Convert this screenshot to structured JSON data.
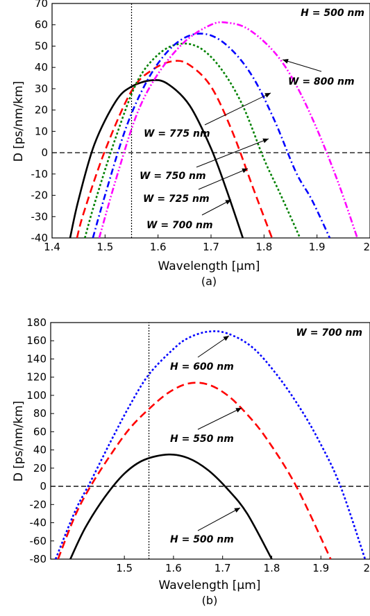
{
  "chart_data": [
    {
      "type": "line",
      "panel_label": "(a)",
      "xlabel": "Wavelength [µm]",
      "ylabel": "D [ps/nm/km]",
      "xlim": [
        1.4,
        2.0
      ],
      "ylim": [
        -40,
        70
      ],
      "xticks": [
        "1.4",
        "1.5",
        "1.6",
        "1.7",
        "1.8",
        "1.9",
        "2"
      ],
      "yticks": [
        "-40",
        "-30",
        "-20",
        "-10",
        "0",
        "10",
        "20",
        "30",
        "40",
        "50",
        "60",
        "70"
      ],
      "corner_label": "H = 500 nm",
      "reference_lines": {
        "x": 1.55,
        "y": 0
      },
      "series": [
        {
          "name": "W = 700 nm",
          "color": "#000000",
          "style": "solid",
          "x": [
            1.434,
            1.45,
            1.48,
            1.52,
            1.55,
            1.59,
            1.62,
            1.66,
            1.7,
            1.73,
            1.76
          ],
          "y": [
            -40,
            -22,
            4,
            24,
            31,
            34,
            32,
            22,
            2,
            -18,
            -40
          ]
        },
        {
          "name": "W = 725 nm",
          "color": "#ff0000",
          "style": "longdash",
          "x": [
            1.447,
            1.46,
            1.5,
            1.55,
            1.59,
            1.63,
            1.66,
            1.7,
            1.74,
            1.78,
            1.815
          ],
          "y": [
            -40,
            -28,
            1,
            29,
            39,
            43,
            41,
            31,
            10,
            -17,
            -40
          ]
        },
        {
          "name": "W = 750 nm",
          "color": "#008000",
          "style": "dotted",
          "x": [
            1.462,
            1.48,
            1.52,
            1.56,
            1.6,
            1.64,
            1.68,
            1.72,
            1.76,
            1.8,
            1.83,
            1.868
          ],
          "y": [
            -40,
            -24,
            7,
            33,
            46,
            51,
            49,
            39,
            22,
            -3,
            -19,
            -40
          ]
        },
        {
          "name": "W = 775 nm",
          "color": "#0000ff",
          "style": "dashdot",
          "x": [
            1.477,
            1.5,
            1.54,
            1.58,
            1.62,
            1.66,
            1.7,
            1.74,
            1.78,
            1.82,
            1.86,
            1.89,
            1.924
          ],
          "y": [
            -40,
            -20,
            12,
            34,
            48,
            55,
            55,
            48,
            35,
            15,
            -9,
            -22,
            -40
          ]
        },
        {
          "name": "W = 800 nm",
          "color": "#ff00ff",
          "style": "dashdotdot",
          "x": [
            1.489,
            1.52,
            1.56,
            1.6,
            1.65,
            1.7,
            1.73,
            1.77,
            1.82,
            1.86,
            1.9,
            1.94,
            1.976
          ],
          "y": [
            -40,
            -13,
            18,
            37,
            52,
            60,
            61,
            58,
            47,
            32,
            11,
            -14,
            -40
          ]
        }
      ],
      "annotations": [
        "W = 800 nm",
        "W = 775 nm",
        "W = 750 nm",
        "W = 725 nm",
        "W = 700 nm"
      ]
    },
    {
      "type": "line",
      "panel_label": "(b)",
      "xlabel": "Wavelength [µm]",
      "ylabel": "D [ps/nm/km]",
      "xlim": [
        1.35,
        2.0
      ],
      "ylim": [
        -80,
        180
      ],
      "xticks": [
        "1.5",
        "1.6",
        "1.7",
        "1.8",
        "1.9",
        "2"
      ],
      "yticks": [
        "-80",
        "-60",
        "-40",
        "-20",
        "0",
        "20",
        "40",
        "60",
        "80",
        "100",
        "120",
        "140",
        "160",
        "180"
      ],
      "corner_label": "W = 700 nm",
      "reference_lines": {
        "x": 1.55,
        "y": 0
      },
      "series": [
        {
          "name": "H = 500 nm",
          "color": "#000000",
          "style": "solid",
          "x": [
            1.39,
            1.42,
            1.46,
            1.5,
            1.54,
            1.59,
            1.63,
            1.67,
            1.71,
            1.75,
            1.8
          ],
          "y": [
            -80,
            -46,
            -12,
            14,
            29,
            35,
            31,
            18,
            -3,
            -30,
            -80
          ]
        },
        {
          "name": "H = 550 nm",
          "color": "#ff0000",
          "style": "longdash",
          "x": [
            1.365,
            1.4,
            1.43,
            1.47,
            1.51,
            1.55,
            1.59,
            1.63,
            1.67,
            1.71,
            1.75,
            1.79,
            1.85,
            1.92
          ],
          "y": [
            -80,
            -32,
            -1,
            33,
            63,
            85,
            103,
            113,
            112,
            100,
            79,
            52,
            0,
            -80
          ]
        },
        {
          "name": "H = 600 nm",
          "color": "#0000ff",
          "style": "dotted",
          "x": [
            1.36,
            1.4,
            1.43,
            1.47,
            1.51,
            1.55,
            1.6,
            1.63,
            1.67,
            1.71,
            1.76,
            1.81,
            1.86,
            1.9,
            1.94,
            1.99
          ],
          "y": [
            -80,
            -27,
            4,
            47,
            88,
            123,
            151,
            163,
            170,
            168,
            153,
            123,
            84,
            46,
            0,
            -80
          ]
        }
      ],
      "annotations": [
        "H = 600 nm",
        "H = 550 nm",
        "H = 500 nm"
      ]
    }
  ]
}
